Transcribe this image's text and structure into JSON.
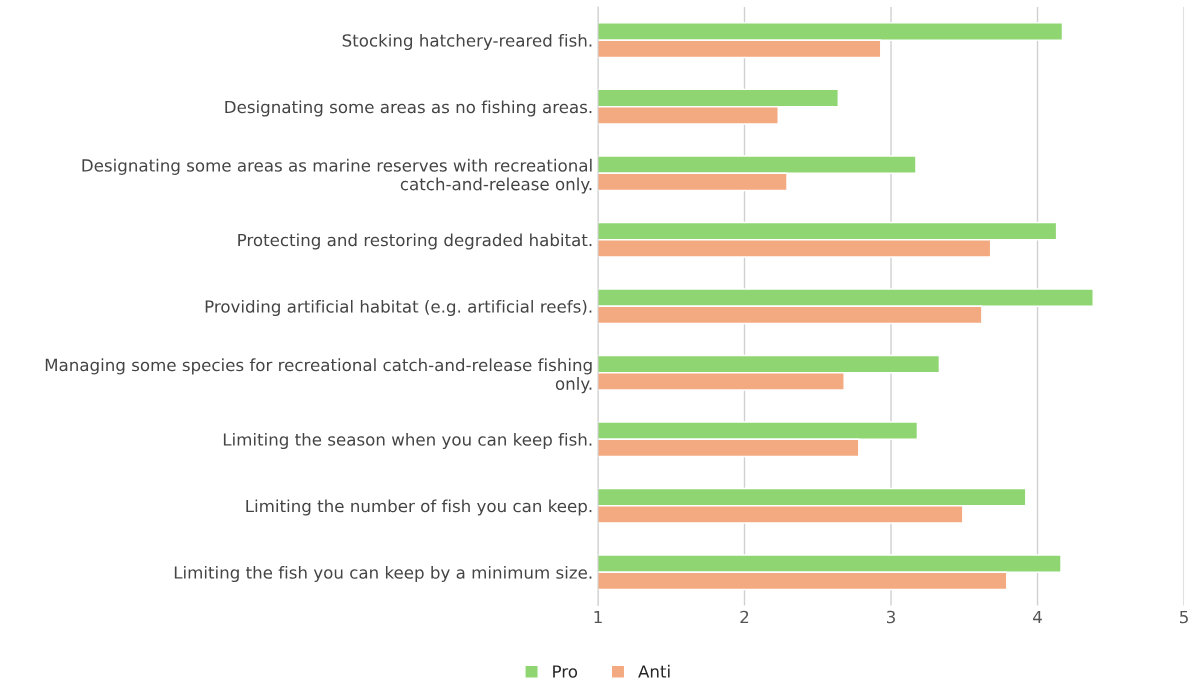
{
  "chart_data": {
    "type": "bar",
    "orientation": "horizontal",
    "categories": [
      "Stocking hatchery-reared fish.",
      "Designating some areas as no fishing areas.",
      "Designating some areas as marine reserves with recreational\ncatch-and-release only.",
      "Protecting and restoring degraded habitat.",
      "Providing artificial habitat (e.g. artificial reefs).",
      "Managing some species for recreational catch-and-release fishing\nonly.",
      "Limiting the season when you can keep fish.",
      "Limiting the number of fish you can keep.",
      "Limiting the fish you can keep by a minimum size."
    ],
    "series": [
      {
        "name": "Pro",
        "color": "#8fd672",
        "values": [
          4.17,
          2.64,
          3.17,
          4.13,
          4.38,
          3.33,
          3.18,
          3.92,
          4.16
        ]
      },
      {
        "name": "Anti",
        "color": "#f4aa80",
        "values": [
          2.93,
          2.23,
          2.29,
          3.68,
          3.62,
          2.68,
          2.78,
          3.49,
          3.79
        ]
      }
    ],
    "xlim": [
      1,
      5
    ],
    "xticks": [
      1,
      2,
      3,
      4,
      5
    ],
    "grid": "x",
    "legend": "bottom"
  }
}
